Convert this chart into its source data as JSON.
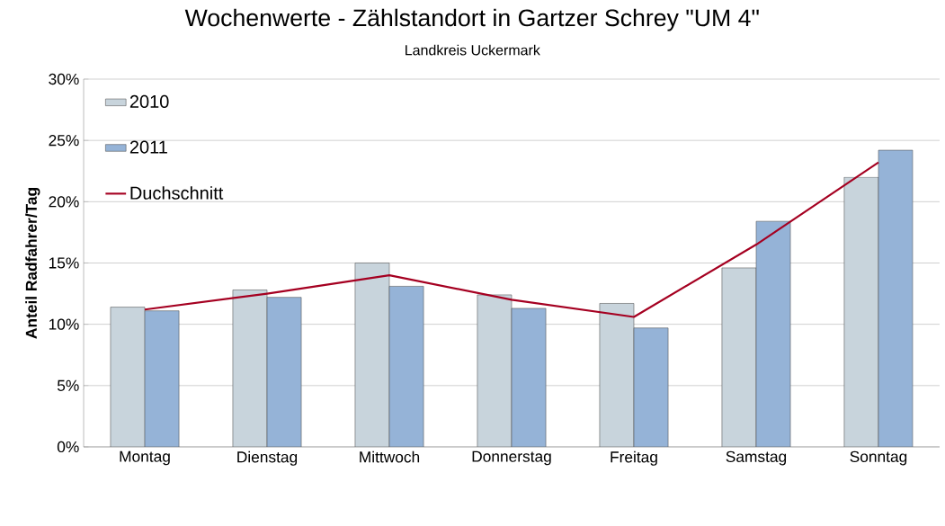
{
  "chart_data": {
    "type": "bar",
    "title": "Wochenwerte - Zählstandort in Gartzer Schrey \"UM 4\"",
    "subtitle": "Landkreis Uckermark",
    "ylabel": "Anteil Radfahrer/Tag",
    "categories": [
      "Montag",
      "Dienstag",
      "Mittwoch",
      "Donnerstag",
      "Freitag",
      "Samstag",
      "Sonntag"
    ],
    "series": [
      {
        "name": "2010",
        "color": "#c8d4dc",
        "values": [
          11.4,
          12.8,
          15.0,
          12.4,
          11.7,
          14.6,
          22.0
        ]
      },
      {
        "name": "2011",
        "color": "#95b3d7",
        "values": [
          11.1,
          12.2,
          13.1,
          11.3,
          9.7,
          18.4,
          24.2
        ]
      },
      {
        "name": "Duchschnitt",
        "type": "line",
        "color": "#a50021",
        "values": [
          11.2,
          12.5,
          14.0,
          12.0,
          10.6,
          16.5,
          23.2
        ]
      }
    ],
    "ylim": [
      0,
      30
    ],
    "yticks": [
      {
        "value": 0,
        "label": "0%"
      },
      {
        "value": 5,
        "label": "5%"
      },
      {
        "value": 10,
        "label": "10%"
      },
      {
        "value": 15,
        "label": "15%"
      },
      {
        "value": 20,
        "label": "20%"
      },
      {
        "value": 25,
        "label": "25%"
      },
      {
        "value": 30,
        "label": "30%"
      }
    ],
    "grid": "y",
    "legend": "top left",
    "marker": "none"
  }
}
